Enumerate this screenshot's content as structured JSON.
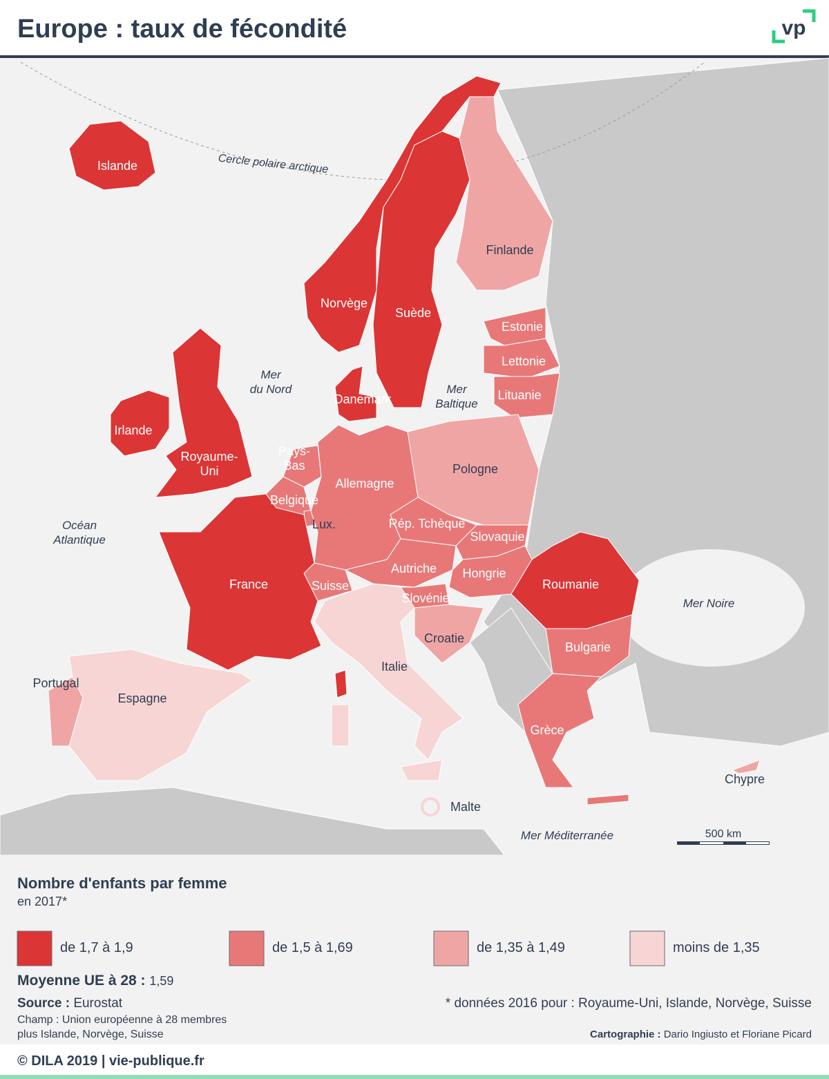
{
  "header": {
    "title": "Europe : taux de fécondité",
    "logo": "vp"
  },
  "map": {
    "countries": [
      {
        "lines": [
          "Islande"
        ],
        "color": "#dc3535"
      },
      {
        "lines": [
          "Norvège"
        ],
        "color": "#dc3535"
      },
      {
        "lines": [
          "Suède"
        ],
        "color": "#dc3535"
      },
      {
        "lines": [
          "Finlande"
        ],
        "color": "#f0a5a5"
      },
      {
        "lines": [
          "Estonie"
        ],
        "color": "#e87878"
      },
      {
        "lines": [
          "Lettonie"
        ],
        "color": "#e87878"
      },
      {
        "lines": [
          "Lituanie"
        ],
        "color": "#e87878"
      },
      {
        "lines": [
          "Danemark"
        ],
        "color": "#dc3535"
      },
      {
        "lines": [
          "Irlande"
        ],
        "color": "#dc3535"
      },
      {
        "lines": [
          "Royaume-",
          "Uni"
        ],
        "color": "#dc3535"
      },
      {
        "lines": [
          "Pays-",
          "Bas"
        ],
        "color": "#e87878"
      },
      {
        "lines": [
          "Belgique"
        ],
        "color": "#e87878"
      },
      {
        "lines": [
          "Lux."
        ],
        "color": "#e87878"
      },
      {
        "lines": [
          "Allemagne"
        ],
        "color": "#e87878"
      },
      {
        "lines": [
          "Pologne"
        ],
        "color": "#f0a5a5"
      },
      {
        "lines": [
          "Rép. Tchèque"
        ],
        "color": "#e87878"
      },
      {
        "lines": [
          "Slovaquie"
        ],
        "color": "#e87878"
      },
      {
        "lines": [
          "Autriche"
        ],
        "color": "#e87878"
      },
      {
        "lines": [
          "Hongrie"
        ],
        "color": "#e87878"
      },
      {
        "lines": [
          "Suisse"
        ],
        "color": "#e87878"
      },
      {
        "lines": [
          "Slovénie"
        ],
        "color": "#e87878"
      },
      {
        "lines": [
          "France"
        ],
        "color": "#dc3535"
      },
      {
        "lines": [
          "Roumanie"
        ],
        "color": "#dc3535"
      },
      {
        "lines": [
          "Bulgarie"
        ],
        "color": "#e87878"
      },
      {
        "lines": [
          "Croatie"
        ],
        "color": "#f0a5a5"
      },
      {
        "lines": [
          "Italie"
        ],
        "color": "#f7d5d5"
      },
      {
        "lines": [
          "Espagne"
        ],
        "color": "#f7d5d5"
      },
      {
        "lines": [
          "Portugal"
        ],
        "color": "#f0a5a5"
      },
      {
        "lines": [
          "Grèce"
        ],
        "color": "#e87878"
      },
      {
        "lines": [
          "Chypre"
        ],
        "color": "#f0a5a5"
      },
      {
        "lines": [
          "Malte"
        ],
        "color": "#f7d5d5"
      }
    ],
    "seas": [
      {
        "lines": [
          "Mer",
          "du Nord"
        ]
      },
      {
        "lines": [
          "Mer",
          "Baltique"
        ]
      },
      {
        "lines": [
          "Océan",
          "Atlantique"
        ]
      },
      {
        "lines": [
          "Mer Noire"
        ]
      },
      {
        "lines": [
          "Mer Méditerranée"
        ]
      }
    ],
    "arctic_circle": "Cercle polaire arctique",
    "scale": "500 km"
  },
  "legend": {
    "title": "Nombre d'enfants par femme",
    "subtitle": "en 2017*",
    "items": [
      {
        "label": "de 1,7 à 1,9",
        "color": "#dc3535"
      },
      {
        "label": "de 1,5 à 1,69",
        "color": "#e87878"
      },
      {
        "label": "de 1,35 à 1,49",
        "color": "#f0a5a5"
      },
      {
        "label": "moins de 1,35",
        "color": "#f7d5d5"
      }
    ],
    "average_label": "Moyenne UE à 28 :",
    "average_value": "1,59"
  },
  "source": {
    "label": "Source :",
    "value": "Eurostat",
    "scope_lines": [
      "Champ : Union européenne à 28 membres",
      "plus Islande, Norvège, Suisse"
    ],
    "note": "* données 2016 pour : Royaume-Uni, Islande, Norvège, Suisse",
    "credit_label": "Cartographie :",
    "credit_value": "Dario Ingiusto et Floriane Picard"
  },
  "footer": {
    "text": "© DILA 2019 | vie-publique.fr"
  }
}
